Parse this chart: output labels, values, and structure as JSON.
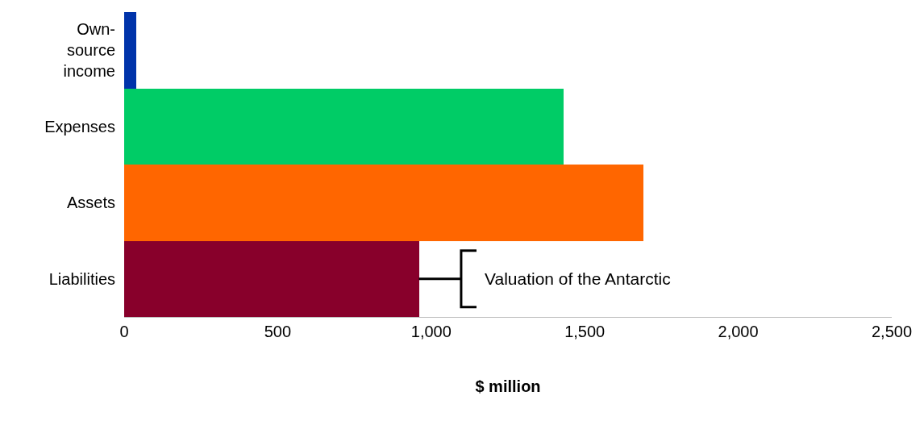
{
  "chart_data": {
    "type": "bar",
    "orientation": "horizontal",
    "xlabel": "$ million",
    "categories": [
      "Own-source income",
      "Expenses",
      "Assets",
      "Liabilities"
    ],
    "values": [
      40,
      1430,
      1690,
      960
    ],
    "colors": [
      "#0033aa",
      "#00cc66",
      "#ff6600",
      "#88002b"
    ],
    "xlim": [
      0,
      2500
    ],
    "xticks": [
      0,
      {
        "value": 500,
        "label": "500"
      },
      {
        "value": 1000,
        "label": "1,000"
      },
      {
        "value": 1500,
        "label": "1,500"
      },
      {
        "value": 2000,
        "label": "2,000"
      },
      {
        "value": 2500,
        "label": "2,500"
      }
    ],
    "annotations": [
      {
        "text": "Valuation of the Antarctic",
        "x": 960,
        "y": "Liabilities"
      }
    ]
  }
}
